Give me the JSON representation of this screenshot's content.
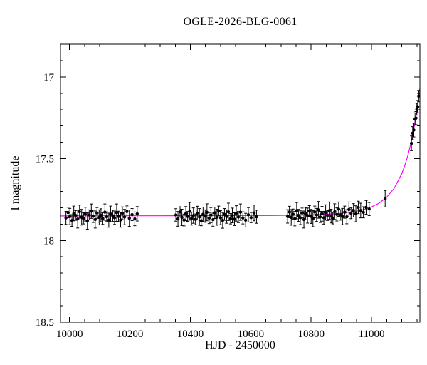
{
  "chart_data": {
    "type": "scatter",
    "title": "OGLE-2026-BLG-0061",
    "xlabel": "HJD - 2450000",
    "ylabel": "I magnitude",
    "xlim": [
      9970,
      11160
    ],
    "ylim": [
      18.5,
      16.8
    ],
    "y_inverted": true,
    "grid": false,
    "legend": "none",
    "x_ticks": [
      {
        "v": 10000,
        "label": "10000"
      },
      {
        "v": 10200,
        "label": "10200"
      },
      {
        "v": 10400,
        "label": "10400"
      },
      {
        "v": 10600,
        "label": "10600"
      },
      {
        "v": 10800,
        "label": "10800"
      },
      {
        "v": 11000,
        "label": "11000"
      }
    ],
    "x_minor_step": 50,
    "y_ticks": [
      {
        "v": 17,
        "label": "17"
      },
      {
        "v": 17.5,
        "label": "17.5"
      },
      {
        "v": 18,
        "label": "18"
      },
      {
        "v": 18.5,
        "label": "18.5"
      }
    ],
    "y_minor_step": 0.1,
    "style": {
      "point_color": "#000000",
      "curve_color": "#ff00ff",
      "frame_color": "#000000",
      "background": "#ffffff"
    },
    "series": [
      {
        "name": "I-band photometry",
        "type": "points_with_errors",
        "point_format": [
          "hjd_minus_2450000",
          "I_mag",
          "err_mag"
        ],
        "points": [
          [
            9988,
            17.862,
            0.04
          ],
          [
            9995,
            17.829,
            0.032
          ],
          [
            10001,
            17.854,
            0.05
          ],
          [
            10008,
            17.878,
            0.036
          ],
          [
            10014,
            17.835,
            0.045
          ],
          [
            10020,
            17.847,
            0.03
          ],
          [
            10027,
            17.869,
            0.055
          ],
          [
            10033,
            17.824,
            0.04
          ],
          [
            10040,
            17.858,
            0.048
          ],
          [
            10046,
            17.865,
            0.034
          ],
          [
            10052,
            17.839,
            0.042
          ],
          [
            10059,
            17.881,
            0.05
          ],
          [
            10065,
            17.844,
            0.031
          ],
          [
            10072,
            17.821,
            0.044
          ],
          [
            10078,
            17.852,
            0.038
          ],
          [
            10085,
            17.872,
            0.052
          ],
          [
            10091,
            17.832,
            0.033
          ],
          [
            10098,
            17.859,
            0.046
          ],
          [
            10104,
            17.846,
            0.04
          ],
          [
            10110,
            17.866,
            0.036
          ],
          [
            10117,
            17.827,
            0.05
          ],
          [
            10123,
            17.855,
            0.03
          ],
          [
            10130,
            17.876,
            0.043
          ],
          [
            10136,
            17.838,
            0.048
          ],
          [
            10143,
            17.849,
            0.035
          ],
          [
            10149,
            17.861,
            0.041
          ],
          [
            10156,
            17.83,
            0.053
          ],
          [
            10162,
            17.853,
            0.032
          ],
          [
            10169,
            17.874,
            0.045
          ],
          [
            10175,
            17.834,
            0.039
          ],
          [
            10182,
            17.857,
            0.047
          ],
          [
            10190,
            17.823,
            0.034
          ],
          [
            10198,
            17.864,
            0.05
          ],
          [
            10207,
            17.842,
            0.037
          ],
          [
            10216,
            17.868,
            0.042
          ],
          [
            10224,
            17.837,
            0.044
          ],
          [
            10352,
            17.844,
            0.038
          ],
          [
            10359,
            17.868,
            0.045
          ],
          [
            10366,
            17.826,
            0.032
          ],
          [
            10372,
            17.859,
            0.05
          ],
          [
            10379,
            17.875,
            0.036
          ],
          [
            10385,
            17.836,
            0.043
          ],
          [
            10391,
            17.853,
            0.03
          ],
          [
            10398,
            17.822,
            0.054
          ],
          [
            10404,
            17.866,
            0.04
          ],
          [
            10410,
            17.848,
            0.047
          ],
          [
            10417,
            17.871,
            0.033
          ],
          [
            10423,
            17.833,
            0.042
          ],
          [
            10430,
            17.856,
            0.051
          ],
          [
            10436,
            17.879,
            0.031
          ],
          [
            10442,
            17.84,
            0.044
          ],
          [
            10449,
            17.851,
            0.038
          ],
          [
            10455,
            17.828,
            0.052
          ],
          [
            10462,
            17.863,
            0.034
          ],
          [
            10468,
            17.845,
            0.046
          ],
          [
            10475,
            17.873,
            0.04
          ],
          [
            10481,
            17.831,
            0.035
          ],
          [
            10488,
            17.858,
            0.049
          ],
          [
            10494,
            17.82,
            0.03
          ],
          [
            10500,
            17.861,
            0.043
          ],
          [
            10507,
            17.877,
            0.048
          ],
          [
            10513,
            17.841,
            0.036
          ],
          [
            10520,
            17.854,
            0.041
          ],
          [
            10526,
            17.825,
            0.053
          ],
          [
            10533,
            17.867,
            0.032
          ],
          [
            10539,
            17.847,
            0.045
          ],
          [
            10546,
            17.87,
            0.039
          ],
          [
            10552,
            17.835,
            0.047
          ],
          [
            10559,
            17.857,
            0.034
          ],
          [
            10566,
            17.827,
            0.05
          ],
          [
            10574,
            17.862,
            0.037
          ],
          [
            10583,
            17.876,
            0.042
          ],
          [
            10592,
            17.843,
            0.044
          ],
          [
            10601,
            17.86,
            0.031
          ],
          [
            10611,
            17.832,
            0.048
          ],
          [
            10619,
            17.855,
            0.04
          ],
          [
            10722,
            17.853,
            0.041
          ],
          [
            10728,
            17.826,
            0.035
          ],
          [
            10734,
            17.859,
            0.048
          ],
          [
            10740,
            17.84,
            0.032
          ],
          [
            10746,
            17.867,
            0.044
          ],
          [
            10752,
            17.818,
            0.05
          ],
          [
            10758,
            17.847,
            0.037
          ],
          [
            10764,
            17.861,
            0.042
          ],
          [
            10770,
            17.832,
            0.03
          ],
          [
            10776,
            17.872,
            0.052
          ],
          [
            10782,
            17.836,
            0.038
          ],
          [
            10788,
            17.848,
            0.046
          ],
          [
            10794,
            17.82,
            0.033
          ],
          [
            10800,
            17.853,
            0.043
          ],
          [
            10806,
            17.867,
            0.049
          ],
          [
            10812,
            17.826,
            0.036
          ],
          [
            10818,
            17.844,
            0.04
          ],
          [
            10824,
            17.813,
            0.051
          ],
          [
            10830,
            17.856,
            0.034
          ],
          [
            10836,
            17.837,
            0.045
          ],
          [
            10842,
            17.861,
            0.039
          ],
          [
            10848,
            17.829,
            0.047
          ],
          [
            10854,
            17.847,
            0.031
          ],
          [
            10860,
            17.818,
            0.053
          ],
          [
            10866,
            17.851,
            0.042
          ],
          [
            10872,
            17.864,
            0.035
          ],
          [
            10878,
            17.824,
            0.048
          ],
          [
            10885,
            17.841,
            0.04
          ],
          [
            10891,
            17.809,
            0.044
          ],
          [
            10898,
            17.844,
            0.032
          ],
          [
            10904,
            17.854,
            0.05
          ],
          [
            10911,
            17.827,
            0.037
          ],
          [
            10918,
            17.855,
            0.043
          ],
          [
            10925,
            17.811,
            0.046
          ],
          [
            10932,
            17.834,
            0.033
          ],
          [
            10940,
            17.816,
            0.041
          ],
          [
            10948,
            17.837,
            0.049
          ],
          [
            10956,
            17.798,
            0.038
          ],
          [
            10964,
            17.817,
            0.045
          ],
          [
            10973,
            17.828,
            0.034
          ],
          [
            10982,
            17.798,
            0.042
          ],
          [
            10992,
            17.808,
            0.04
          ],
          [
            11045,
            17.745,
            0.05
          ],
          [
            11132,
            17.406,
            0.045
          ],
          [
            11136,
            17.344,
            0.04
          ],
          [
            11140,
            17.325,
            0.042
          ],
          [
            11144,
            17.258,
            0.038
          ],
          [
            11147,
            17.252,
            0.04
          ],
          [
            11150,
            17.198,
            0.036
          ],
          [
            11153,
            17.182,
            0.038
          ],
          [
            11156,
            17.117,
            0.035
          ]
        ]
      },
      {
        "name": "microlensing model",
        "type": "line",
        "point_format": [
          "hjd_minus_2450000",
          "I_mag"
        ],
        "points": [
          [
            9970,
            17.85
          ],
          [
            10100,
            17.849
          ],
          [
            10300,
            17.849
          ],
          [
            10500,
            17.848
          ],
          [
            10700,
            17.847
          ],
          [
            10800,
            17.844
          ],
          [
            10850,
            17.84
          ],
          [
            10900,
            17.834
          ],
          [
            10950,
            17.821
          ],
          [
            10975,
            17.811
          ],
          [
            11000,
            17.795
          ],
          [
            11025,
            17.772
          ],
          [
            11050,
            17.736
          ],
          [
            11075,
            17.681
          ],
          [
            11100,
            17.592
          ],
          [
            11110,
            17.542
          ],
          [
            11120,
            17.482
          ],
          [
            11130,
            17.408
          ],
          [
            11135,
            17.365
          ],
          [
            11140,
            17.317
          ],
          [
            11145,
            17.265
          ],
          [
            11150,
            17.206
          ],
          [
            11155,
            17.141
          ],
          [
            11160,
            17.068
          ]
        ]
      }
    ]
  }
}
